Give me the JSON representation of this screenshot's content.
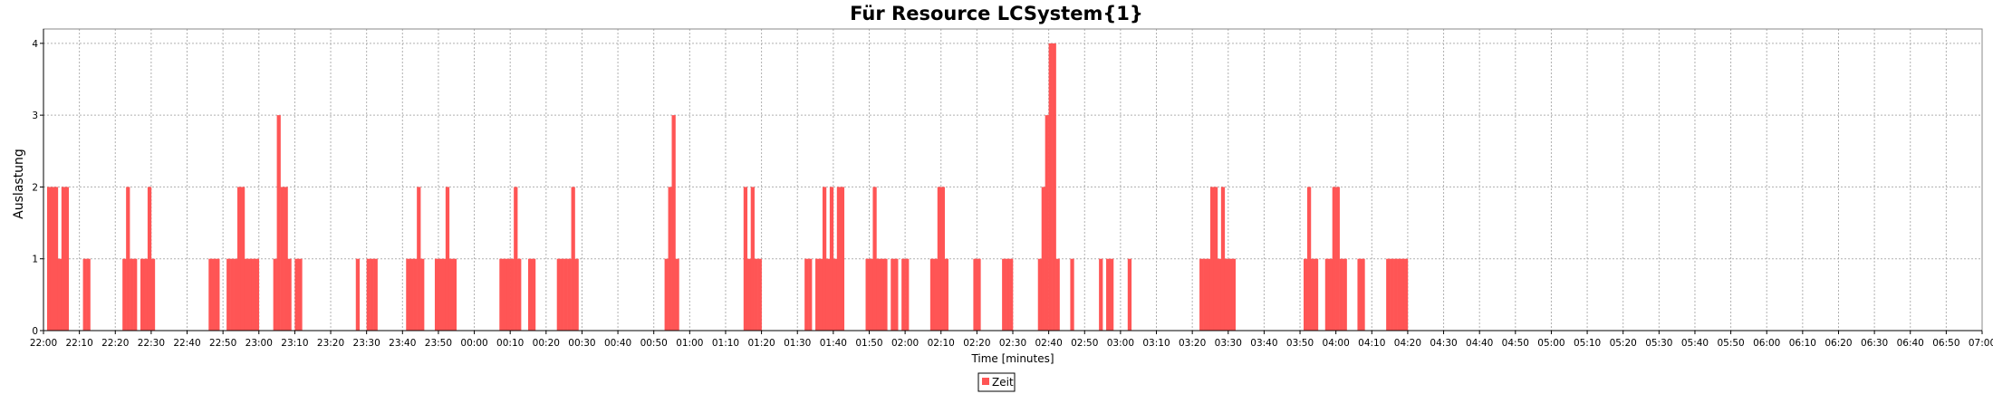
{
  "chart_data": {
    "type": "bar",
    "title": "Für Resource LCSystem{1}",
    "xlabel": "Time [minutes]",
    "ylabel": "Auslastung",
    "ylim": [
      0,
      4.2
    ],
    "yticks": [
      "0",
      "1",
      "2",
      "3",
      "4"
    ],
    "grid": true,
    "legend_position": "bottom-center",
    "colors": {
      "series": "#ff5555",
      "grid": "#b0b0b0",
      "axis": "#000000"
    },
    "x_tick_labels": [
      "22:00",
      "22:10",
      "22:20",
      "22:30",
      "22:40",
      "22:50",
      "23:00",
      "23:10",
      "23:20",
      "23:30",
      "23:40",
      "23:50",
      "00:00",
      "00:10",
      "00:20",
      "00:30",
      "00:40",
      "00:50",
      "01:00",
      "01:10",
      "01:20",
      "01:30",
      "01:40",
      "01:50",
      "02:00",
      "02:10",
      "02:20",
      "02:30",
      "02:40",
      "02:50",
      "03:00",
      "03:10",
      "03:20",
      "03:30",
      "03:40",
      "03:50",
      "04:00",
      "04:10",
      "04:20",
      "04:30",
      "04:40",
      "04:50",
      "05:00",
      "05:10",
      "05:20",
      "05:30",
      "05:40",
      "05:50",
      "06:00",
      "06:10",
      "06:20",
      "06:30",
      "06:40",
      "06:50",
      "07:00"
    ],
    "series": [
      {
        "name": "Zeit",
        "start": "22:00",
        "step_minutes": 1,
        "values": [
          0,
          2,
          2,
          2,
          1,
          2,
          2,
          0,
          0,
          0,
          0,
          1,
          1,
          0,
          0,
          0,
          0,
          0,
          0,
          0,
          0,
          0,
          1,
          2,
          1,
          1,
          0,
          1,
          1,
          2,
          1,
          0,
          0,
          0,
          0,
          0,
          0,
          0,
          0,
          0,
          0,
          0,
          0,
          0,
          0,
          0,
          1,
          1,
          1,
          0,
          0,
          1,
          1,
          1,
          2,
          2,
          1,
          1,
          1,
          1,
          0,
          0,
          0,
          0,
          1,
          3,
          2,
          2,
          1,
          0,
          1,
          1,
          0,
          0,
          0,
          0,
          0,
          0,
          0,
          0,
          0,
          0,
          0,
          0,
          0,
          0,
          0,
          1,
          0,
          0,
          1,
          1,
          1,
          0,
          0,
          0,
          0,
          0,
          0,
          0,
          0,
          1,
          1,
          1,
          2,
          1,
          0,
          0,
          0,
          1,
          1,
          1,
          2,
          1,
          1,
          0,
          0,
          0,
          0,
          0,
          0,
          0,
          0,
          0,
          0,
          0,
          0,
          1,
          1,
          1,
          1,
          2,
          1,
          0,
          0,
          1,
          1,
          0,
          0,
          0,
          0,
          0,
          0,
          1,
          1,
          1,
          1,
          2,
          1,
          0,
          0,
          0,
          0,
          0,
          0,
          0,
          0,
          0,
          0,
          0,
          0,
          0,
          0,
          0,
          0,
          0,
          0,
          0,
          0,
          0,
          0,
          0,
          0,
          1,
          2,
          3,
          1,
          0,
          0,
          0,
          0,
          0,
          0,
          0,
          0,
          0,
          0,
          0,
          0,
          0,
          0,
          0,
          0,
          0,
          0,
          2,
          1,
          2,
          1,
          1,
          0,
          0,
          0,
          0,
          0,
          0,
          0,
          0,
          0,
          0,
          0,
          0,
          1,
          1,
          0,
          1,
          1,
          2,
          1,
          2,
          1,
          2,
          2,
          0,
          0,
          0,
          0,
          0,
          0,
          1,
          1,
          2,
          1,
          1,
          1,
          0,
          1,
          1,
          0,
          1,
          1,
          0,
          0,
          0,
          0,
          0,
          0,
          1,
          1,
          2,
          2,
          1,
          0,
          0,
          0,
          0,
          0,
          0,
          0,
          1,
          1,
          0,
          0,
          0,
          0,
          0,
          0,
          1,
          1,
          1,
          0,
          0,
          0,
          0,
          0,
          0,
          0,
          1,
          2,
          3,
          4,
          4,
          1,
          0,
          0,
          0,
          1,
          0,
          0,
          0,
          0,
          0,
          0,
          0,
          1,
          0,
          1,
          1,
          0,
          0,
          0,
          0,
          1,
          0,
          0,
          0,
          0,
          0,
          0,
          0,
          0,
          0,
          0,
          0,
          0,
          0,
          0,
          0,
          0,
          0,
          0,
          0,
          1,
          1,
          1,
          2,
          2,
          1,
          2,
          1,
          1,
          1,
          0,
          0,
          0,
          0,
          0,
          0,
          0,
          0,
          0,
          0,
          0,
          0,
          0,
          0,
          0,
          0,
          0,
          0,
          0,
          1,
          2,
          1,
          1,
          0,
          0,
          1,
          1,
          2,
          2,
          1,
          1,
          0,
          0,
          0,
          1,
          1,
          0,
          0,
          0,
          0,
          0,
          0,
          1,
          1,
          1,
          1,
          1,
          1
        ]
      }
    ]
  }
}
